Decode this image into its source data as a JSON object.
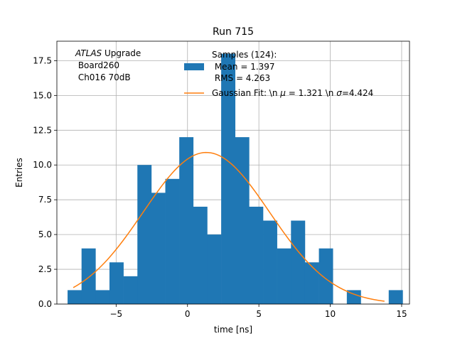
{
  "chart_data": {
    "type": "histogram",
    "title": "Run 715",
    "xlabel": "time [ns]",
    "ylabel": "Entries",
    "xlim": [
      -9.15,
      15.55
    ],
    "ylim": [
      0,
      18.9
    ],
    "grid": true,
    "bin_width": 0.978,
    "bins": [
      {
        "left": -8.4,
        "value": 1
      },
      {
        "left": -7.422,
        "value": 4
      },
      {
        "left": -6.444,
        "value": 1
      },
      {
        "left": -5.466,
        "value": 3
      },
      {
        "left": -4.488,
        "value": 2
      },
      {
        "left": -3.51,
        "value": 10
      },
      {
        "left": -2.532,
        "value": 8
      },
      {
        "left": -1.554,
        "value": 9
      },
      {
        "left": -0.576,
        "value": 12
      },
      {
        "left": 0.402,
        "value": 7
      },
      {
        "left": 1.38,
        "value": 5
      },
      {
        "left": 2.358,
        "value": 18
      },
      {
        "left": 3.336,
        "value": 12
      },
      {
        "left": 4.314,
        "value": 7
      },
      {
        "left": 5.292,
        "value": 6
      },
      {
        "left": 6.27,
        "value": 4
      },
      {
        "left": 7.248,
        "value": 6
      },
      {
        "left": 8.226,
        "value": 3
      },
      {
        "left": 9.204,
        "value": 4
      },
      {
        "left": 10.182,
        "value": 0
      },
      {
        "left": 11.16,
        "value": 1
      },
      {
        "left": 12.138,
        "value": 0
      },
      {
        "left": 13.116,
        "value": 0
      },
      {
        "left": 14.094,
        "value": 1
      }
    ],
    "histogram_color": "#1f77b4",
    "fit": {
      "mu": 1.321,
      "sigma": 4.424,
      "amplitude": 10.9,
      "x_range": [
        -8.0,
        13.8
      ],
      "color": "#ff7f0e"
    },
    "xticks": [
      -5,
      0,
      5,
      10,
      15
    ],
    "xtick_labels": [
      "−5",
      "0",
      "5",
      "10",
      "15"
    ],
    "yticks": [
      0,
      2.5,
      5,
      7.5,
      10,
      12.5,
      15,
      17.5
    ],
    "ytick_labels": [
      "0.0",
      "2.5",
      "5.0",
      "7.5",
      "10.0",
      "12.5",
      "15.0",
      "17.5"
    ],
    "annotation": {
      "line1_italic": "ATLAS",
      "line1_rest": " Upgrade",
      "line2": " Board260",
      "line3": " Ch016 70dB"
    },
    "legend": {
      "position": "top-center",
      "hist_label_lines": [
        "Samples (124):",
        " Mean = 1.397",
        " RMS = 4.263"
      ],
      "fit_label_prefix": "Gaussian Fit: \\n ",
      "fit_label_mu_symbol": "μ",
      "fit_label_mu_value": " = 1.321 \\n ",
      "fit_label_sigma_symbol": "σ",
      "fit_label_sigma_value": "=4.424"
    }
  }
}
